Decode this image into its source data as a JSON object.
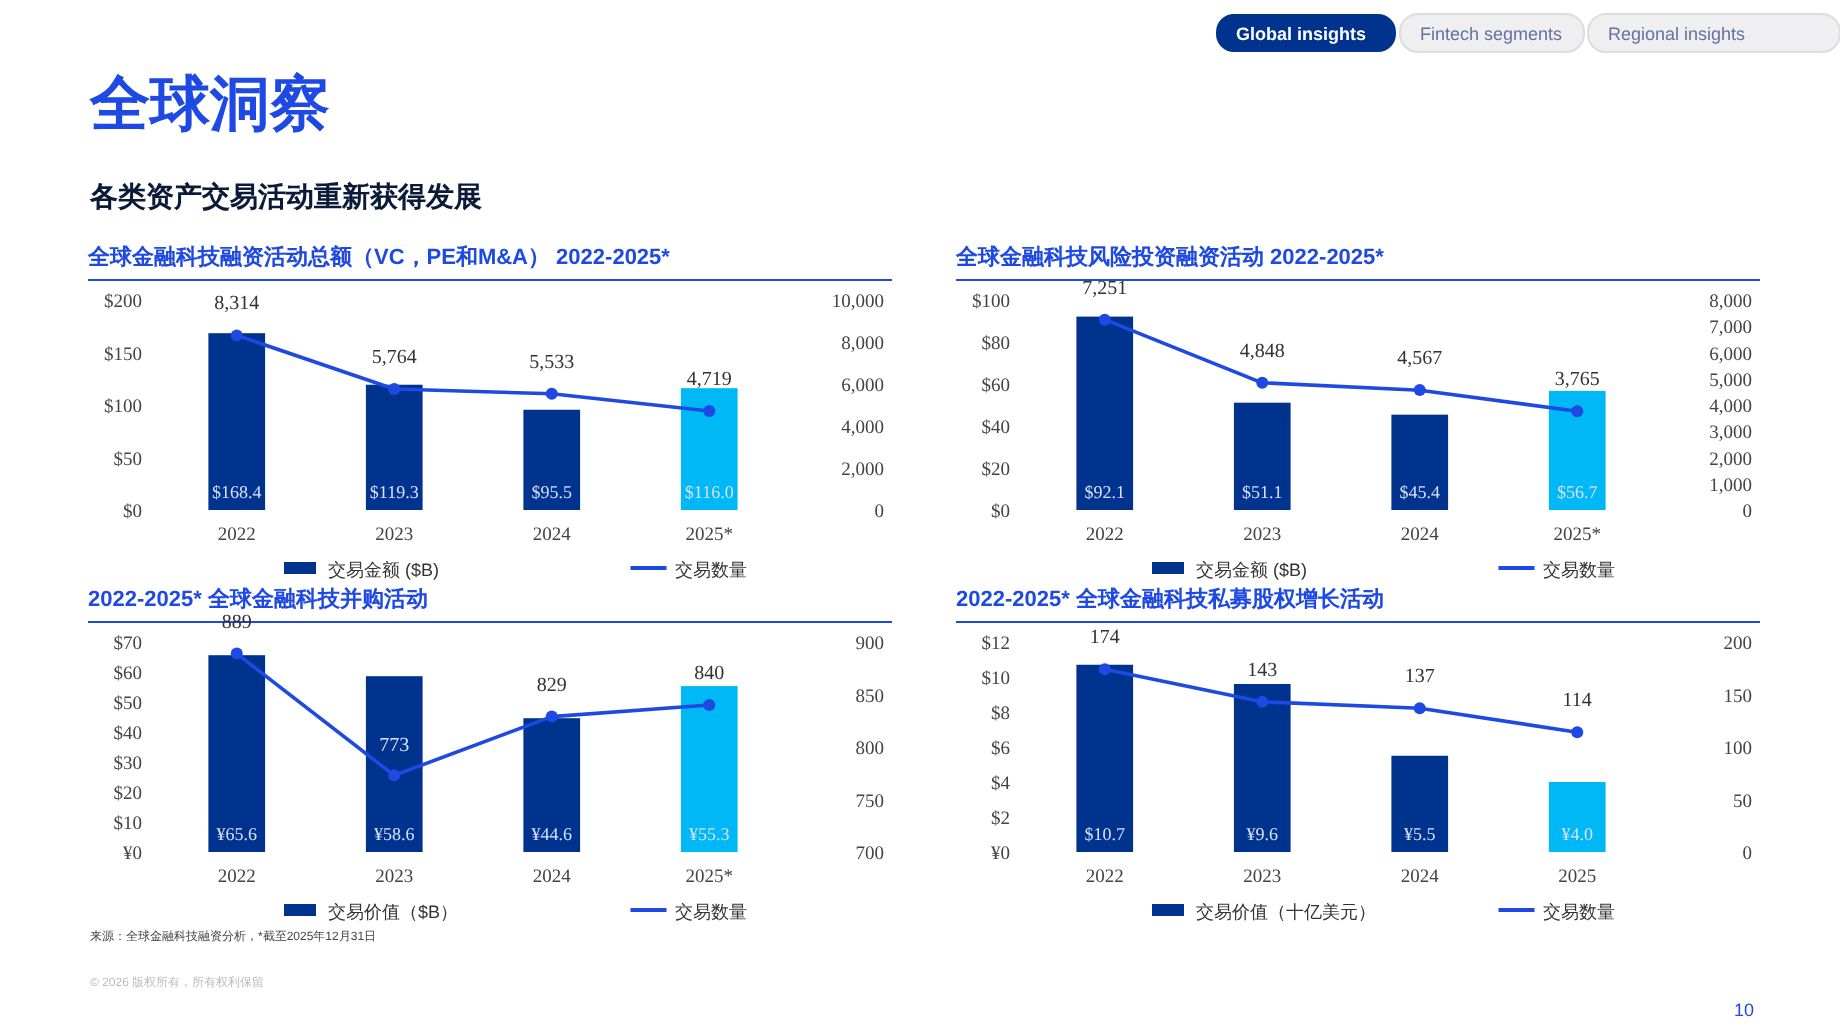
{
  "chart_data": [
    {
      "type": "other",
      "title": "全球洞察",
      "subtitle": "各类资产交易活动重新获得发展",
      "annotations": [
        "Global insights",
        "Fintech segments",
        "Regional insights",
        "来源：全球金融科技融资分析，*截至2025年12月31日",
        "© 2026 版权所有，所有权利保留",
        "10"
      ]
    },
    {
      "type": "bar",
      "title": "全球金融科技融资活动总额（VC，PE和M&A） 2022-2025*",
      "categories": [
        "2022",
        "2023",
        "2024",
        "2025*"
      ],
      "legend": "bottom",
      "ylim": [
        0,
        200
      ],
      "yticks": [
        {
          "value": 0,
          "label": "$0"
        },
        {
          "value": 50,
          "label": "$50"
        },
        {
          "value": 100,
          "label": "$100"
        },
        {
          "value": 150,
          "label": "$150"
        },
        {
          "value": 200,
          "label": "$200"
        }
      ],
      "y2lim": [
        0,
        10000
      ],
      "y2ticks": [
        0,
        {
          "value": 2000,
          "label": "2,000"
        },
        {
          "value": 4000,
          "label": "4,000"
        },
        {
          "value": 6000,
          "label": "6,000"
        },
        {
          "value": 8000,
          "label": "8,000"
        },
        {
          "value": 10000,
          "label": "10,000"
        }
      ],
      "series": [
        {
          "type": "bar",
          "name": "交易金额 ($B)",
          "color": "#00338d",
          "colors": [
            "#00338d",
            "#00338d",
            "#00338d",
            "#00b8f5"
          ],
          "values": [
            168.4,
            119.3,
            95.5,
            116.0
          ],
          "value_labels": [
            "$168.4",
            "$119.3",
            "$95.5",
            "$116.0"
          ]
        },
        {
          "type": "line",
          "name": "交易数量",
          "color": "#1e49e2",
          "axis": "y2",
          "marker": "circle",
          "values": [
            8314,
            5764,
            5533,
            4719
          ],
          "value_labels": [
            "8,314",
            "5,764",
            "5,533",
            "4,719"
          ]
        }
      ]
    },
    {
      "type": "bar",
      "title": "全球金融科技风险投资融资活动 2022-2025*",
      "categories": [
        "2022",
        "2023",
        "2024",
        "2025*"
      ],
      "legend": "bottom",
      "ylim": [
        0,
        100
      ],
      "yticks": [
        {
          "value": 0,
          "label": "$0"
        },
        {
          "value": 20,
          "label": "$20"
        },
        {
          "value": 40,
          "label": "$40"
        },
        {
          "value": 60,
          "label": "$60"
        },
        {
          "value": 80,
          "label": "$80"
        },
        {
          "value": 100,
          "label": "$100"
        }
      ],
      "y2lim": [
        0,
        8000
      ],
      "y2ticks": [
        0,
        {
          "value": 1000,
          "label": "1,000"
        },
        {
          "value": 2000,
          "label": "2,000"
        },
        {
          "value": 3000,
          "label": "3,000"
        },
        {
          "value": 4000,
          "label": "4,000"
        },
        {
          "value": 5000,
          "label": "5,000"
        },
        {
          "value": 6000,
          "label": "6,000"
        },
        {
          "value": 7000,
          "label": "7,000"
        },
        {
          "value": 8000,
          "label": "8,000"
        }
      ],
      "series": [
        {
          "type": "bar",
          "name": "交易金额 ($B)",
          "color": "#00338d",
          "colors": [
            "#00338d",
            "#00338d",
            "#00338d",
            "#00b8f5"
          ],
          "values": [
            92.1,
            51.1,
            45.4,
            56.7
          ],
          "value_labels": [
            "$92.1",
            "$51.1",
            "$45.4",
            "$56.7"
          ]
        },
        {
          "type": "line",
          "name": "交易数量",
          "color": "#1e49e2",
          "axis": "y2",
          "marker": "circle",
          "values": [
            7251,
            4848,
            4567,
            3765
          ],
          "value_labels": [
            "7,251",
            "4,848",
            "4,567",
            "3,765"
          ]
        }
      ]
    },
    {
      "type": "bar",
      "title": "2022-2025* 全球金融科技并购活动",
      "categories": [
        "2022",
        "2023",
        "2024",
        "2025*"
      ],
      "legend": "bottom",
      "ylim": [
        0,
        70
      ],
      "yticks": [
        {
          "value": 0,
          "label": "¥0"
        },
        {
          "value": 10,
          "label": "$10"
        },
        {
          "value": 20,
          "label": "$20"
        },
        {
          "value": 30,
          "label": "$30"
        },
        {
          "value": 40,
          "label": "$40"
        },
        {
          "value": 50,
          "label": "$50"
        },
        {
          "value": 60,
          "label": "$60"
        },
        {
          "value": 70,
          "label": "$70"
        }
      ],
      "y2lim": [
        700,
        900
      ],
      "y2ticks": [
        700,
        750,
        800,
        850,
        900
      ],
      "series": [
        {
          "type": "bar",
          "name": "交易价值（$B）",
          "color": "#00338d",
          "colors": [
            "#00338d",
            "#00338d",
            "#00338d",
            "#00b8f5"
          ],
          "values": [
            65.6,
            58.6,
            44.6,
            55.3
          ],
          "value_labels": [
            "¥65.6",
            "¥58.6",
            "¥44.6",
            "¥55.3"
          ]
        },
        {
          "type": "line",
          "name": "交易数量",
          "color": "#1e49e2",
          "axis": "y2",
          "marker": "circle",
          "values": [
            889,
            773,
            829,
            840
          ],
          "value_labels": [
            "889",
            "773",
            "829",
            "840"
          ]
        }
      ]
    },
    {
      "type": "bar",
      "title": "2022-2025* 全球金融科技私募股权增长活动",
      "categories": [
        "2022",
        "2023",
        "2024",
        "2025"
      ],
      "legend": "bottom",
      "ylim": [
        0,
        12
      ],
      "yticks": [
        {
          "value": 0,
          "label": "¥0"
        },
        {
          "value": 2,
          "label": "$2"
        },
        {
          "value": 4,
          "label": "$4"
        },
        {
          "value": 6,
          "label": "$6"
        },
        {
          "value": 8,
          "label": "$8"
        },
        {
          "value": 10,
          "label": "$10"
        },
        {
          "value": 12,
          "label": "$12"
        }
      ],
      "y2lim": [
        0,
        200
      ],
      "y2ticks": [
        0,
        50,
        100,
        150,
        200
      ],
      "series": [
        {
          "type": "bar",
          "name": "交易价值（十亿美元）",
          "color": "#00338d",
          "colors": [
            "#00338d",
            "#00338d",
            "#00338d",
            "#00b8f5"
          ],
          "values": [
            10.7,
            9.6,
            5.5,
            4.0
          ],
          "value_labels": [
            "$10.7",
            "¥9.6",
            "¥5.5",
            "¥4.0"
          ]
        },
        {
          "type": "line",
          "name": "交易数量",
          "color": "#1e49e2",
          "axis": "y2",
          "marker": "circle",
          "values": [
            174,
            143,
            137,
            114
          ],
          "value_labels": [
            "174",
            "143",
            "137",
            "114"
          ]
        }
      ]
    }
  ]
}
